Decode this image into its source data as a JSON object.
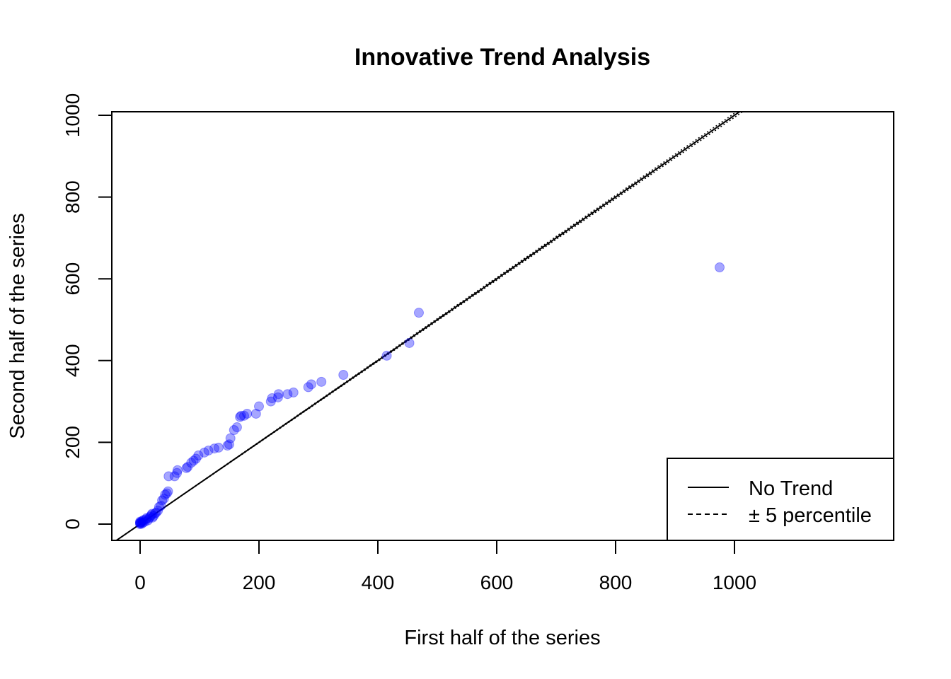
{
  "chart_data": {
    "type": "scatter",
    "title": "Innovative Trend Analysis",
    "xlabel": "First half of the series",
    "ylabel": "Second half of the series",
    "xlim": [
      -40,
      1015
    ],
    "ylim": [
      -40,
      1015
    ],
    "xticks": [
      "0",
      "200",
      "400",
      "600",
      "800",
      "1000"
    ],
    "yticks": [
      "0",
      "200",
      "400",
      "600",
      "800",
      "1000"
    ],
    "grid": false,
    "legend": {
      "position": "bottom-right",
      "entries": [
        {
          "label": "No Trend",
          "line": "solid"
        },
        {
          "label": "± 5 percentile",
          "line": "dashed"
        }
      ]
    },
    "point_color": "#0000FF",
    "point_alpha": 0.35,
    "lines": [
      {
        "kind": "no-trend",
        "slope": 1.0,
        "style": "solid"
      },
      {
        "kind": "upper-5-percentile",
        "slope": 1.005,
        "style": "dotted"
      },
      {
        "kind": "lower-5-percentile",
        "slope": 0.995,
        "style": "dotted"
      }
    ],
    "points": [
      {
        "x": 0,
        "y": 0
      },
      {
        "x": 0,
        "y": 2
      },
      {
        "x": 0,
        "y": 4
      },
      {
        "x": 0,
        "y": 6
      },
      {
        "x": 1,
        "y": 3
      },
      {
        "x": 2,
        "y": 5
      },
      {
        "x": 3,
        "y": 1
      },
      {
        "x": 4,
        "y": 8
      },
      {
        "x": 5,
        "y": 4
      },
      {
        "x": 6,
        "y": 10
      },
      {
        "x": 8,
        "y": 6
      },
      {
        "x": 10,
        "y": 12
      },
      {
        "x": 11,
        "y": 15
      },
      {
        "x": 13,
        "y": 9
      },
      {
        "x": 15,
        "y": 14
      },
      {
        "x": 17,
        "y": 18
      },
      {
        "x": 19,
        "y": 22
      },
      {
        "x": 20,
        "y": 25
      },
      {
        "x": 21,
        "y": 16
      },
      {
        "x": 23,
        "y": 20
      },
      {
        "x": 25,
        "y": 26
      },
      {
        "x": 27,
        "y": 28
      },
      {
        "x": 30,
        "y": 33
      },
      {
        "x": 32,
        "y": 42
      },
      {
        "x": 35,
        "y": 45
      },
      {
        "x": 37,
        "y": 58
      },
      {
        "x": 40,
        "y": 62
      },
      {
        "x": 42,
        "y": 72
      },
      {
        "x": 45,
        "y": 75
      },
      {
        "x": 47,
        "y": 80
      },
      {
        "x": 48,
        "y": 117
      },
      {
        "x": 58,
        "y": 117
      },
      {
        "x": 62,
        "y": 125
      },
      {
        "x": 63,
        "y": 132
      },
      {
        "x": 78,
        "y": 137
      },
      {
        "x": 80,
        "y": 140
      },
      {
        "x": 86,
        "y": 150
      },
      {
        "x": 90,
        "y": 155
      },
      {
        "x": 94,
        "y": 160
      },
      {
        "x": 98,
        "y": 168
      },
      {
        "x": 108,
        "y": 175
      },
      {
        "x": 115,
        "y": 180
      },
      {
        "x": 125,
        "y": 185
      },
      {
        "x": 132,
        "y": 187
      },
      {
        "x": 147,
        "y": 192
      },
      {
        "x": 150,
        "y": 195
      },
      {
        "x": 152,
        "y": 210
      },
      {
        "x": 158,
        "y": 230
      },
      {
        "x": 163,
        "y": 237
      },
      {
        "x": 168,
        "y": 262
      },
      {
        "x": 170,
        "y": 265
      },
      {
        "x": 175,
        "y": 265
      },
      {
        "x": 180,
        "y": 270
      },
      {
        "x": 195,
        "y": 270
      },
      {
        "x": 200,
        "y": 288
      },
      {
        "x": 220,
        "y": 300
      },
      {
        "x": 222,
        "y": 308
      },
      {
        "x": 232,
        "y": 310
      },
      {
        "x": 233,
        "y": 318
      },
      {
        "x": 248,
        "y": 318
      },
      {
        "x": 258,
        "y": 322
      },
      {
        "x": 283,
        "y": 335
      },
      {
        "x": 288,
        "y": 342
      },
      {
        "x": 305,
        "y": 348
      },
      {
        "x": 342,
        "y": 365
      },
      {
        "x": 415,
        "y": 412
      },
      {
        "x": 453,
        "y": 443
      },
      {
        "x": 469,
        "y": 517
      },
      {
        "x": 975,
        "y": 628
      }
    ]
  }
}
